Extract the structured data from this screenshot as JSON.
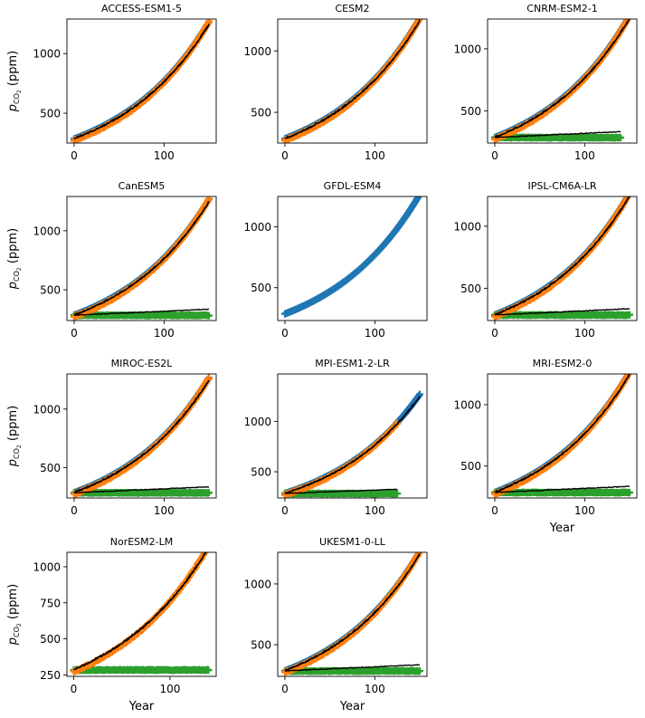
{
  "chart_data": {
    "type": "line",
    "x_axis_label": "Year",
    "y_axis_label": "pCO₂ (ppm)",
    "y_axis_label_parts": {
      "symbol": "p",
      "subscript": "CO",
      "sub_subscript": "2",
      "unit": "(ppm)"
    },
    "series_colors": {
      "blue": "#1f77b4",
      "orange": "#ff7f0e",
      "green": "#2ca02c",
      "black": "#000000"
    },
    "panels": [
      {
        "title": "ACCESS-ESM1-5",
        "xlim": [
          -8,
          158
        ],
        "ylim": [
          250,
          1290
        ],
        "x_ticks": [
          0,
          100
        ],
        "y_ticks": [
          500,
          1000
        ],
        "blue_end": 150,
        "orange_end": 150,
        "has_green": false,
        "black_1pct_end": 150,
        "black_ctrl_end": 0,
        "green_end": 0
      },
      {
        "title": "CESM2",
        "xlim": [
          -8,
          158
        ],
        "ylim": [
          250,
          1260
        ],
        "x_ticks": [
          0,
          100
        ],
        "y_ticks": [
          500,
          1000
        ],
        "blue_end": 150,
        "orange_end": 150,
        "has_green": false,
        "black_1pct_end": 150,
        "black_ctrl_end": 0,
        "green_end": 0
      },
      {
        "title": "CNRM-ESM2-1",
        "xlim": [
          -8,
          158
        ],
        "ylim": [
          240,
          1240
        ],
        "x_ticks": [
          0,
          100
        ],
        "y_ticks": [
          500,
          1000
        ],
        "blue_end": 150,
        "orange_end": 150,
        "has_green": true,
        "black_1pct_end": 150,
        "black_ctrl_end": 140,
        "green_end": 140
      },
      {
        "title": "CanESM5",
        "xlim": [
          -8,
          158
        ],
        "ylim": [
          240,
          1290
        ],
        "x_ticks": [
          0,
          100
        ],
        "y_ticks": [
          500,
          1000
        ],
        "blue_end": 150,
        "orange_end": 150,
        "has_green": true,
        "black_1pct_end": 150,
        "black_ctrl_end": 150,
        "green_end": 150
      },
      {
        "title": "GFDL-ESM4",
        "xlim": [
          -8,
          158
        ],
        "ylim": [
          230,
          1250
        ],
        "x_ticks": [
          0,
          100
        ],
        "y_ticks": [
          500,
          1000
        ],
        "blue_end": 150,
        "orange_end": 0,
        "has_green": false,
        "black_1pct_end": 0,
        "black_ctrl_end": 0,
        "green_end": 0
      },
      {
        "title": "IPSL-CM6A-LR",
        "xlim": [
          -8,
          158
        ],
        "ylim": [
          240,
          1240
        ],
        "x_ticks": [
          0,
          100
        ],
        "y_ticks": [
          500,
          1000
        ],
        "blue_end": 150,
        "orange_end": 150,
        "has_green": true,
        "black_1pct_end": 150,
        "black_ctrl_end": 150,
        "green_end": 150
      },
      {
        "title": "MIROC-ES2L",
        "xlim": [
          -8,
          158
        ],
        "ylim": [
          240,
          1300
        ],
        "x_ticks": [
          0,
          100
        ],
        "y_ticks": [
          500,
          1000
        ],
        "blue_end": 150,
        "orange_end": 150,
        "has_green": true,
        "black_1pct_end": 150,
        "black_ctrl_end": 150,
        "green_end": 150
      },
      {
        "title": "MPI-ESM1-2-LR",
        "xlim": [
          -8,
          158
        ],
        "ylim": [
          240,
          1470
        ],
        "x_ticks": [
          0,
          100
        ],
        "y_ticks": [
          500,
          1000
        ],
        "blue_end": 150,
        "orange_end": 125,
        "has_green": true,
        "black_1pct_end": 150,
        "black_ctrl_end": 125,
        "green_end": 125
      },
      {
        "title": "MRI-ESM2-0",
        "xlim": [
          -8,
          158
        ],
        "ylim": [
          240,
          1250
        ],
        "x_ticks": [
          0,
          100
        ],
        "y_ticks": [
          500,
          1000
        ],
        "blue_end": 150,
        "orange_end": 150,
        "has_green": true,
        "black_1pct_end": 150,
        "black_ctrl_end": 150,
        "green_end": 150
      },
      {
        "title": "NorESM2-LM",
        "xlim": [
          -7,
          148
        ],
        "ylim": [
          240,
          1100
        ],
        "x_ticks": [
          0,
          100
        ],
        "y_ticks": [
          250,
          500,
          750,
          1000
        ],
        "blue_end": 0,
        "orange_end": 140,
        "has_green": true,
        "black_1pct_end": 140,
        "black_ctrl_end": 0,
        "green_end": 140
      },
      {
        "title": "UKESM1-0-LL",
        "xlim": [
          -8,
          158
        ],
        "ylim": [
          240,
          1260
        ],
        "x_ticks": [
          0,
          100
        ],
        "y_ticks": [
          500,
          1000
        ],
        "blue_end": 150,
        "orange_end": 150,
        "has_green": true,
        "black_1pct_end": 150,
        "black_ctrl_end": 150,
        "green_end": 150
      }
    ]
  }
}
